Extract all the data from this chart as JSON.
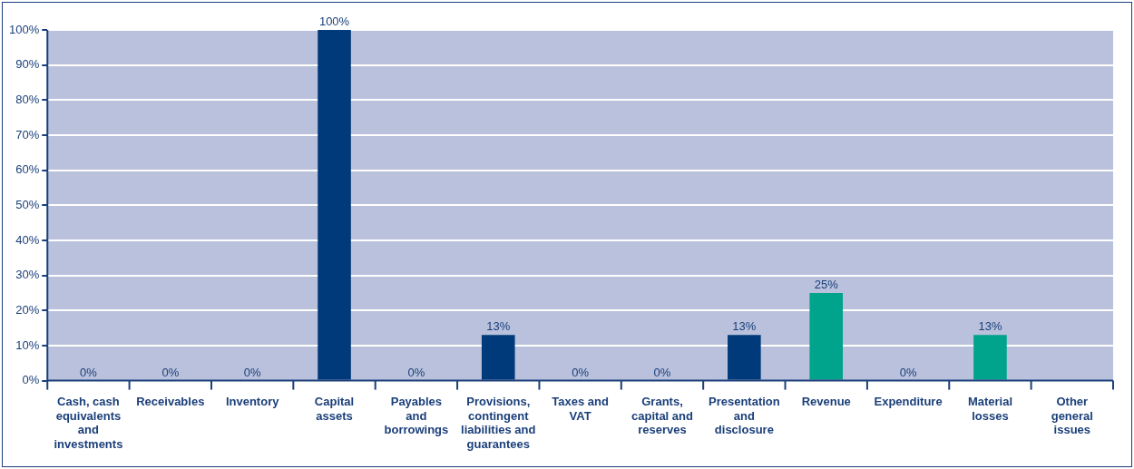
{
  "chart_data": {
    "type": "bar",
    "categories": [
      "Cash, cash equivalents and investments",
      "Receivables",
      "Inventory",
      "Capital assets",
      "Payables and borrowings",
      "Provisions, contingent liabilities and guarantees",
      "Taxes and VAT",
      "Grants, capital and reserves",
      "Presentation and disclosure",
      "Revenue",
      "Expenditure",
      "Material losses",
      "Other general issues"
    ],
    "values": [
      0,
      0,
      0,
      100,
      0,
      13,
      0,
      0,
      13,
      25,
      0,
      13,
      null
    ],
    "colors": [
      "#003a7a",
      "#003a7a",
      "#003a7a",
      "#003a7a",
      "#003a7a",
      "#003a7a",
      "#003a7a",
      "#003a7a",
      "#003a7a",
      "#00a38b",
      "#003a7a",
      "#00a38b",
      "#003a7a"
    ],
    "value_labels": [
      "0%",
      "0%",
      "0%",
      "100%",
      "0%",
      "13%",
      "0%",
      "0%",
      "13%",
      "25%",
      "0%",
      "13%",
      null
    ],
    "ylim": [
      0,
      100
    ],
    "yticks": [
      {
        "value": 0,
        "label": "0%"
      },
      {
        "value": 10,
        "label": "10%"
      },
      {
        "value": 20,
        "label": "20%"
      },
      {
        "value": 30,
        "label": "30%"
      },
      {
        "value": 40,
        "label": "40%"
      },
      {
        "value": 50,
        "label": "50%"
      },
      {
        "value": 60,
        "label": "60%"
      },
      {
        "value": 70,
        "label": "70%"
      },
      {
        "value": 80,
        "label": "80%"
      },
      {
        "value": 90,
        "label": "90%"
      },
      {
        "value": 100,
        "label": "100%"
      }
    ],
    "grid": "y"
  }
}
